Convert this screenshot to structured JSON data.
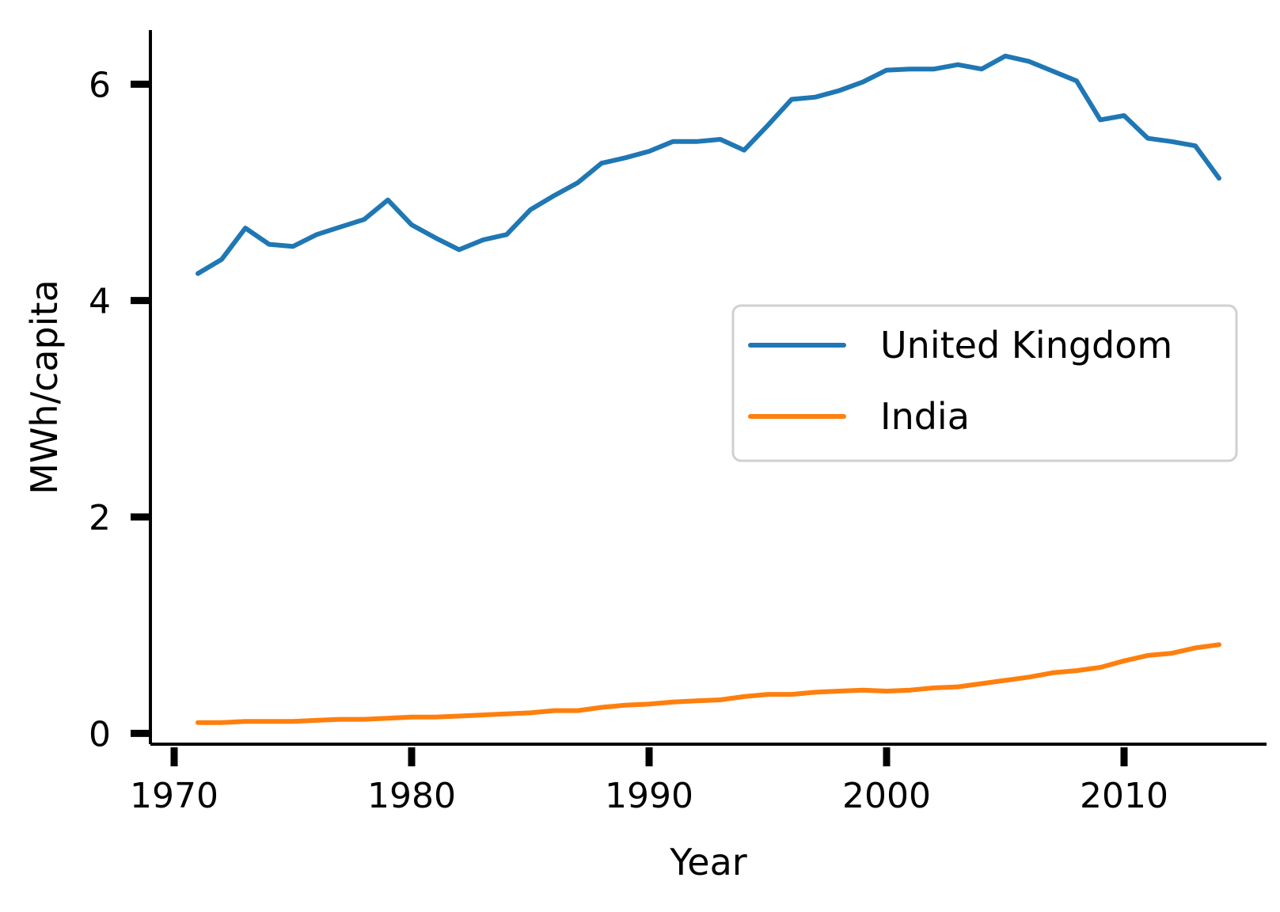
{
  "chart_data": {
    "type": "line",
    "title": "",
    "xlabel": "Year",
    "ylabel": "MWh/capita",
    "xlim": [
      1969,
      2016
    ],
    "ylim": [
      -0.1,
      6.5
    ],
    "x_ticks": [
      1970,
      1980,
      1990,
      2000,
      2010
    ],
    "y_ticks": [
      0,
      2,
      4,
      6
    ],
    "grid": false,
    "legend_position": "center-right",
    "x": [
      1971,
      1972,
      1973,
      1974,
      1975,
      1976,
      1977,
      1978,
      1979,
      1980,
      1981,
      1982,
      1983,
      1984,
      1985,
      1986,
      1987,
      1988,
      1989,
      1990,
      1991,
      1992,
      1993,
      1994,
      1995,
      1996,
      1997,
      1998,
      1999,
      2000,
      2001,
      2002,
      2003,
      2004,
      2005,
      2006,
      2007,
      2008,
      2009,
      2010,
      2011,
      2012,
      2013,
      2014
    ],
    "series": [
      {
        "name": "United Kingdom",
        "color": "#1f77b4",
        "values": [
          4.25,
          4.38,
          4.67,
          4.52,
          4.5,
          4.61,
          4.68,
          4.75,
          4.93,
          4.7,
          4.58,
          4.47,
          4.56,
          4.61,
          4.84,
          4.97,
          5.09,
          5.27,
          5.32,
          5.38,
          5.47,
          5.47,
          5.49,
          5.39,
          5.62,
          5.86,
          5.88,
          5.94,
          6.02,
          6.13,
          6.14,
          6.14,
          6.18,
          6.14,
          6.26,
          6.21,
          6.12,
          6.03,
          5.67,
          5.71,
          5.5,
          5.47,
          5.43,
          5.13
        ]
      },
      {
        "name": "India",
        "color": "#ff7f0e",
        "values": [
          0.1,
          0.1,
          0.11,
          0.11,
          0.11,
          0.12,
          0.13,
          0.13,
          0.14,
          0.15,
          0.15,
          0.16,
          0.17,
          0.18,
          0.19,
          0.21,
          0.21,
          0.24,
          0.26,
          0.27,
          0.29,
          0.3,
          0.31,
          0.34,
          0.36,
          0.36,
          0.38,
          0.39,
          0.4,
          0.39,
          0.4,
          0.42,
          0.43,
          0.46,
          0.49,
          0.52,
          0.56,
          0.58,
          0.61,
          0.67,
          0.72,
          0.74,
          0.79,
          0.82
        ]
      }
    ]
  }
}
